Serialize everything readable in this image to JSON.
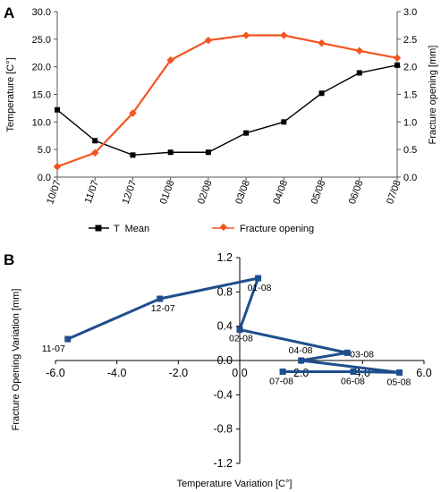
{
  "chart_data": [
    {
      "panel_label": "A",
      "type": "line",
      "categories": [
        "10/07",
        "11/07",
        "12/07",
        "01/08",
        "02/08",
        "03/08",
        "04/08",
        "05/08",
        "06/08",
        "07/08"
      ],
      "ylabel": "Temperature [C°]",
      "y2label": "Fracture opening [mm]",
      "ylim": [
        0,
        30
      ],
      "yticks": [
        "0.0",
        "5.0",
        "10.0",
        "15.0",
        "20.0",
        "25.0",
        "30.0"
      ],
      "y2lim": [
        0,
        3
      ],
      "y2ticks": [
        "0.0",
        "0.5",
        "1.0",
        "1.5",
        "2.0",
        "2.5",
        "3.0"
      ],
      "grid": false,
      "legend_position": "bottom",
      "series": [
        {
          "name": "T  Mean",
          "axis": "left",
          "color": "#000000",
          "marker": "square",
          "values": [
            12.2,
            6.6,
            4.0,
            4.5,
            4.5,
            8.0,
            10.0,
            15.2,
            18.9,
            20.3
          ]
        },
        {
          "name": "Fracture opening",
          "axis": "right",
          "color": "#f2551f",
          "marker": "diamond",
          "values": [
            0.19,
            0.44,
            1.16,
            2.12,
            2.48,
            2.57,
            2.57,
            2.43,
            2.29,
            2.16
          ]
        }
      ]
    },
    {
      "panel_label": "B",
      "type": "line",
      "xlabel": "Temperature Variation [C°]",
      "ylabel": "Fracture Opening Variation [mm]",
      "xlim": [
        -6,
        6
      ],
      "ylim": [
        -1.2,
        1.2
      ],
      "xticks": [
        "-6.0",
        "-4.0",
        "-2.0",
        "0.0",
        "2.0",
        "4.0",
        "6.0"
      ],
      "yticks": [
        "1.2",
        "0.8",
        "0.4",
        "0.0",
        "-0.4",
        "-0.8",
        "-1.2"
      ],
      "grid": false,
      "color": "#1f4e8c",
      "marker": "square",
      "points": [
        {
          "label": "11-07",
          "x": -5.6,
          "y": 0.25
        },
        {
          "label": "12-07",
          "x": -2.6,
          "y": 0.72
        },
        {
          "label": "01-08",
          "x": 0.6,
          "y": 0.96
        },
        {
          "label": "02-08",
          "x": 0.0,
          "y": 0.36
        },
        {
          "label": "03-08",
          "x": 3.5,
          "y": 0.09
        },
        {
          "label": "04-08",
          "x": 2.0,
          "y": 0.0
        },
        {
          "label": "05-08",
          "x": 5.2,
          "y": -0.14
        },
        {
          "label": "06-08",
          "x": 3.7,
          "y": -0.13
        },
        {
          "label": "07-08",
          "x": 1.4,
          "y": -0.13
        }
      ]
    }
  ]
}
